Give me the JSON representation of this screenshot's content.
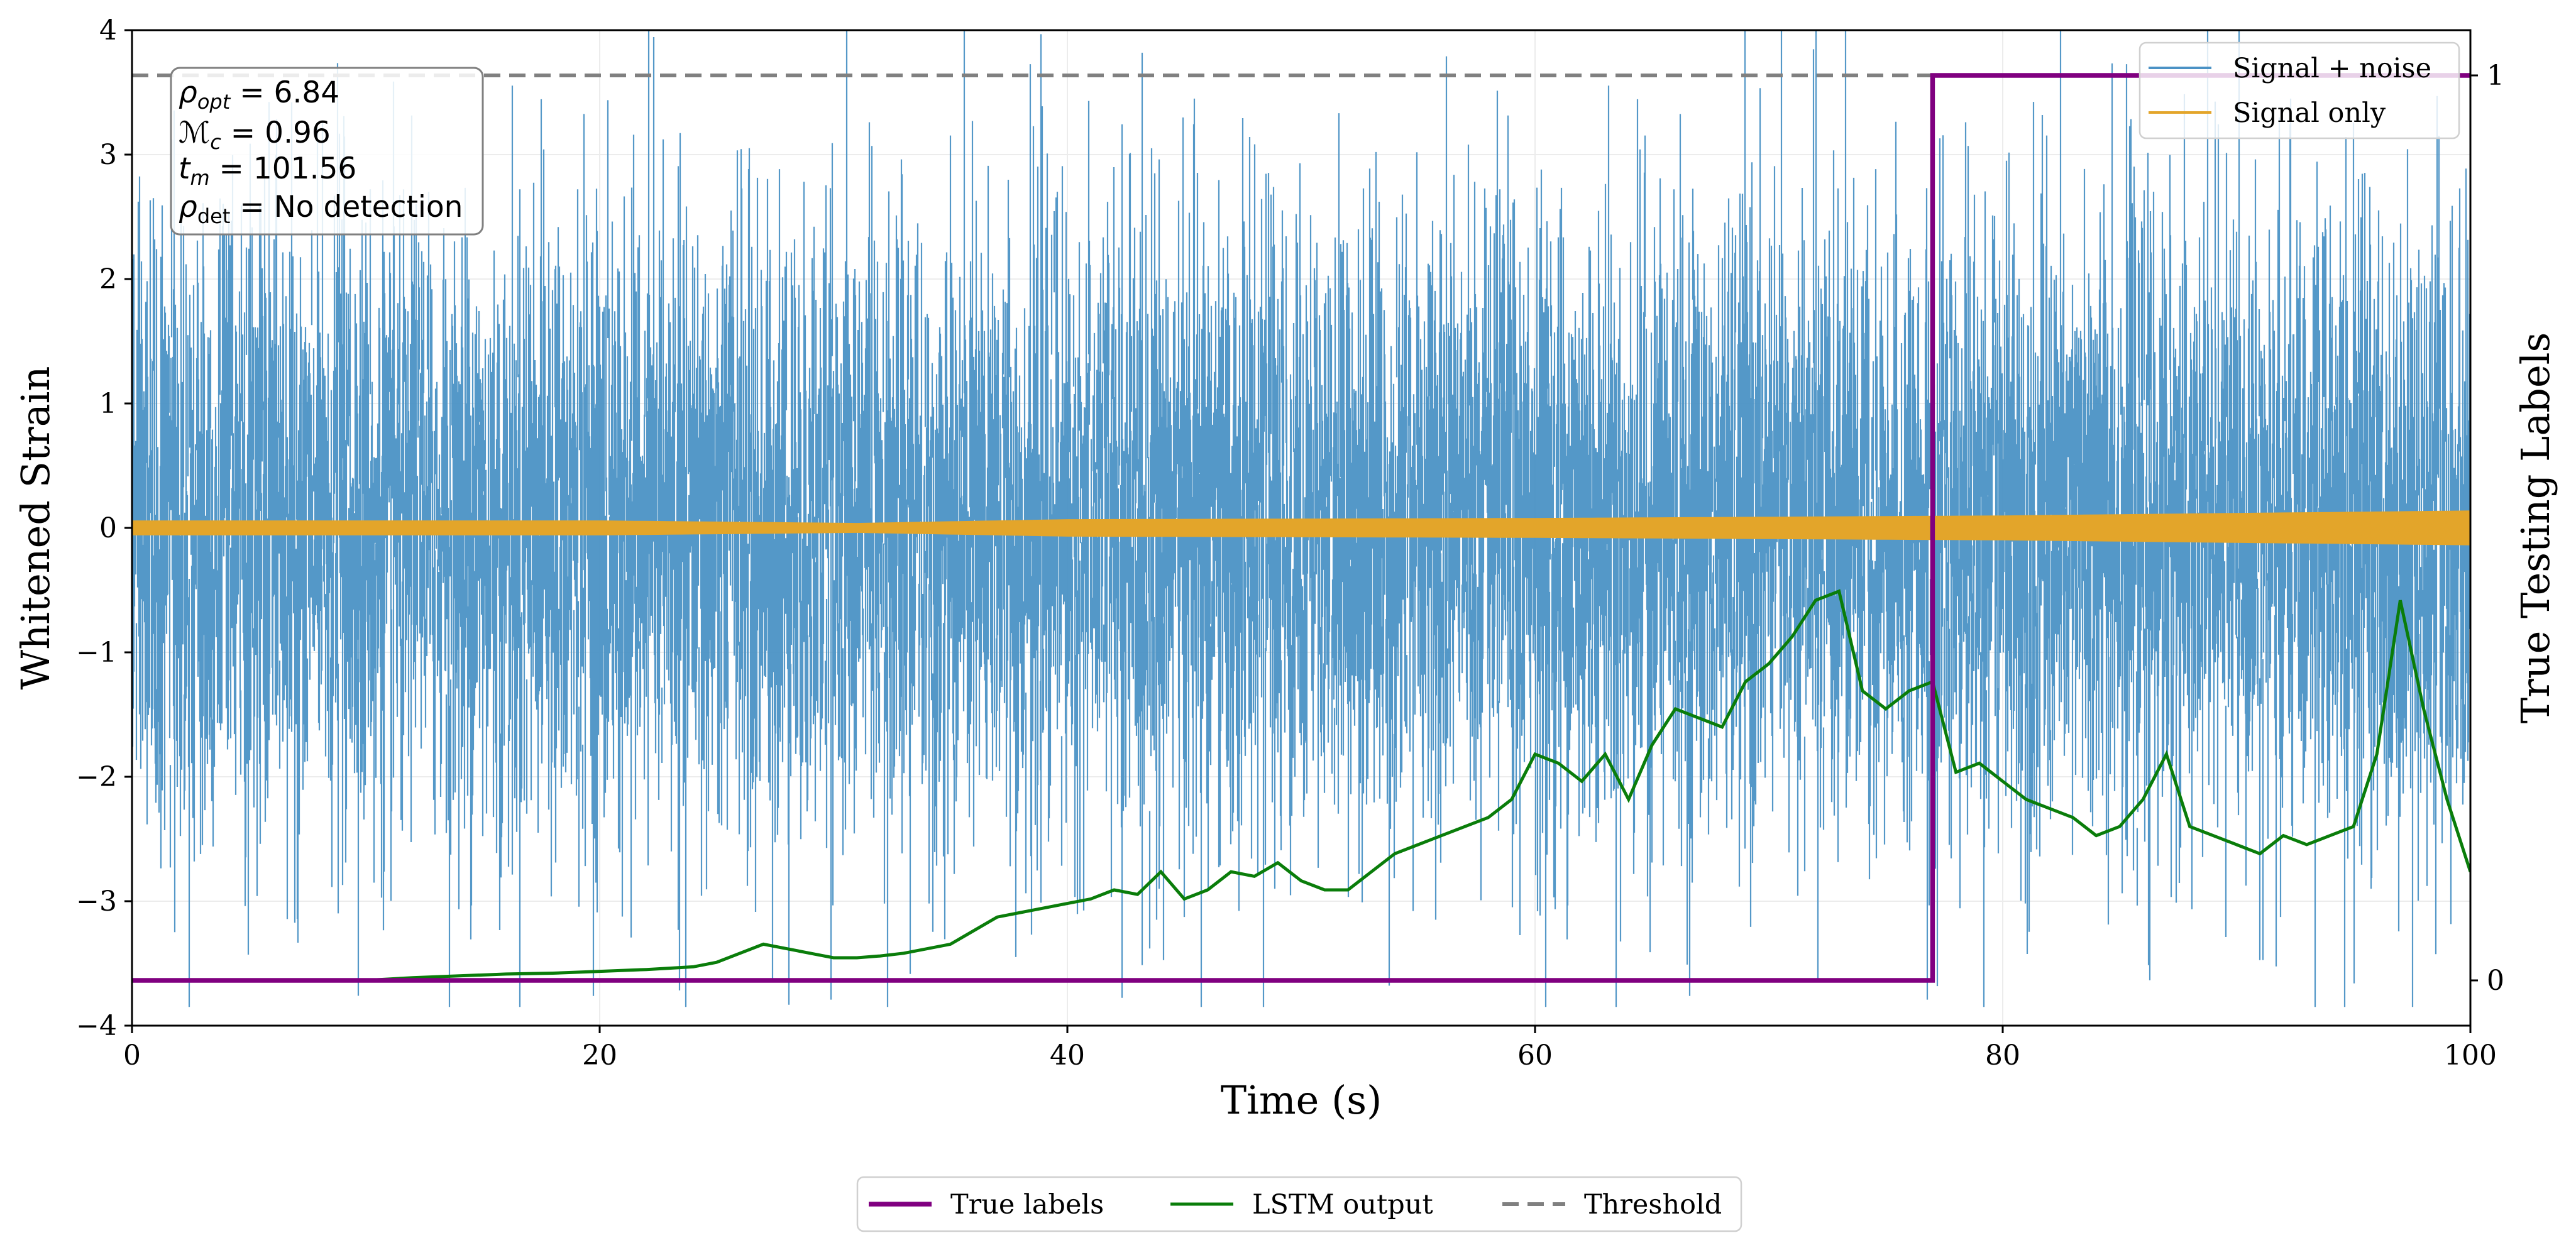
{
  "chart_data": {
    "type": "line",
    "xlabel": "Time (s)",
    "ylabel": "Whitened Strain",
    "ylabel_right": "True Testing Labels",
    "xlim": [
      0,
      100
    ],
    "ylim": [
      -4,
      4
    ],
    "ylim_right": [
      -0.05,
      1.05
    ],
    "x_ticks": [
      "0",
      "20",
      "40",
      "60",
      "80",
      "100"
    ],
    "y_ticks": [
      "−4",
      "−3",
      "−2",
      "−1",
      "0",
      "1",
      "2",
      "3",
      "4"
    ],
    "y_right_ticks": [
      "0",
      "1"
    ],
    "grid": true,
    "colors": {
      "signal_noise": "#4b92c5",
      "signal_only": "#e3a52a",
      "true_labels": "#800080",
      "lstm": "#0a7d0a",
      "threshold": "#808080"
    },
    "legend_upper": {
      "placement": "top-right",
      "entries": [
        "Signal + noise",
        "Signal only"
      ]
    },
    "legend_lower": {
      "placement": "bottom-center",
      "entries": [
        "True labels",
        "LSTM output",
        "Threshold"
      ]
    },
    "info_box": {
      "lines": [
        {
          "label": "ρ",
          "sub": "opt",
          "value": " = 6.84"
        },
        {
          "label": "ℳ",
          "sub": "c",
          "value": " = 0.96"
        },
        {
          "label": "t",
          "sub": "m",
          "value": " = 101.56"
        },
        {
          "label": "ρ",
          "sub": "det",
          "value": " = No detection"
        }
      ]
    },
    "series": [
      {
        "name": "Signal + noise",
        "axis": "left",
        "kind": "noise",
        "std": 1.0,
        "min": -3.85,
        "max": 4.0
      },
      {
        "name": "Signal only",
        "axis": "left",
        "kind": "envelope",
        "x": [
          0,
          20,
          31,
          40,
          60,
          80,
          90,
          100
        ],
        "amplitude": [
          0.06,
          0.06,
          0.04,
          0.07,
          0.08,
          0.1,
          0.12,
          0.14
        ]
      },
      {
        "name": "True labels",
        "axis": "right",
        "x": [
          0,
          77,
          77,
          100
        ],
        "y": [
          0,
          0,
          1,
          1
        ]
      },
      {
        "name": "LSTM output",
        "axis": "right",
        "x": [
          0,
          10,
          12,
          14,
          16,
          18,
          20,
          22,
          24,
          25,
          26,
          27,
          28,
          29,
          30,
          31,
          32,
          33,
          35,
          36,
          37,
          38,
          39,
          40,
          41,
          42,
          43,
          44,
          45,
          46,
          47,
          48,
          49,
          50,
          51,
          52,
          53,
          54,
          55,
          56,
          57,
          58,
          59,
          60,
          61,
          62,
          63,
          64,
          65,
          66,
          67,
          68,
          69,
          70,
          71,
          72,
          73,
          74,
          75,
          76,
          77,
          78,
          79,
          80,
          81,
          82,
          83,
          84,
          85,
          86,
          87,
          88,
          89,
          90,
          91,
          92,
          93,
          94,
          95,
          96,
          97,
          98,
          99,
          100
        ],
        "y": [
          0,
          0,
          0.003,
          0.005,
          0.007,
          0.008,
          0.01,
          0.012,
          0.015,
          0.02,
          0.03,
          0.04,
          0.035,
          0.03,
          0.025,
          0.025,
          0.027,
          0.03,
          0.04,
          0.055,
          0.07,
          0.075,
          0.08,
          0.085,
          0.09,
          0.1,
          0.095,
          0.12,
          0.09,
          0.1,
          0.12,
          0.115,
          0.13,
          0.11,
          0.1,
          0.1,
          0.12,
          0.14,
          0.15,
          0.16,
          0.17,
          0.18,
          0.2,
          0.25,
          0.24,
          0.22,
          0.25,
          0.2,
          0.26,
          0.3,
          0.29,
          0.28,
          0.33,
          0.35,
          0.38,
          0.42,
          0.43,
          0.32,
          0.3,
          0.32,
          0.33,
          0.23,
          0.24,
          0.22,
          0.2,
          0.19,
          0.18,
          0.16,
          0.17,
          0.2,
          0.25,
          0.17,
          0.16,
          0.15,
          0.14,
          0.16,
          0.15,
          0.16,
          0.17,
          0.25,
          0.42,
          0.3,
          0.2,
          0.12
        ]
      },
      {
        "name": "Threshold",
        "axis": "right",
        "style": "dashed",
        "y": 1.0
      }
    ]
  }
}
